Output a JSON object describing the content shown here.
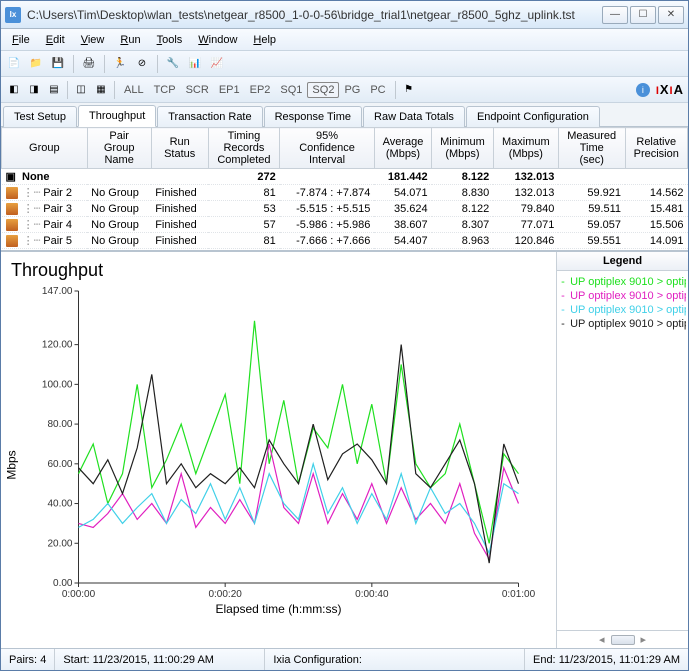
{
  "window": {
    "title": "C:\\Users\\Tim\\Desktop\\wlan_tests\\netgear_r8500_1-0-0-56\\bridge_trial1\\netgear_r8500_5ghz_uplink.tst"
  },
  "menu": [
    "File",
    "Edit",
    "View",
    "Run",
    "Tools",
    "Window",
    "Help"
  ],
  "toolbar2": {
    "buttons": [
      "ALL",
      "TCP",
      "SCR",
      "EP1",
      "EP2",
      "SQ1",
      "SQ2",
      "PG",
      "PC"
    ],
    "selected": "SQ2",
    "brand": "IXIA"
  },
  "tabs": {
    "items": [
      "Test Setup",
      "Throughput",
      "Transaction Rate",
      "Response Time",
      "Raw Data Totals",
      "Endpoint Configuration"
    ],
    "active": 1
  },
  "grid": {
    "columns": [
      "Group",
      "Pair Group Name",
      "Run Status",
      "Timing Records Completed",
      "95% Confidence Interval",
      "Average (Mbps)",
      "Minimum (Mbps)",
      "Maximum (Mbps)",
      "Measured Time (sec)",
      "Relative Precision"
    ],
    "summary": {
      "label": "None",
      "completed": "272",
      "avg": "181.442",
      "min": "8.122",
      "max": "132.013"
    },
    "rows": [
      {
        "pair": "Pair 2",
        "group": "No Group",
        "status": "Finished",
        "completed": "81",
        "ci": "-7.874 : +7.874",
        "avg": "54.071",
        "min": "8.830",
        "max": "132.013",
        "time": "59.921",
        "prec": "14.562"
      },
      {
        "pair": "Pair 3",
        "group": "No Group",
        "status": "Finished",
        "completed": "53",
        "ci": "-5.515 : +5.515",
        "avg": "35.624",
        "min": "8.122",
        "max": "79.840",
        "time": "59.511",
        "prec": "15.481"
      },
      {
        "pair": "Pair 4",
        "group": "No Group",
        "status": "Finished",
        "completed": "57",
        "ci": "-5.986 : +5.986",
        "avg": "38.607",
        "min": "8.307",
        "max": "77.071",
        "time": "59.057",
        "prec": "15.506"
      },
      {
        "pair": "Pair 5",
        "group": "No Group",
        "status": "Finished",
        "completed": "81",
        "ci": "-7.666 : +7.666",
        "avg": "54.407",
        "min": "8.963",
        "max": "120.846",
        "time": "59.551",
        "prec": "14.091"
      }
    ]
  },
  "chart": {
    "title": "Throughput",
    "ylabel": "Mbps",
    "xlabel": "Elapsed time (h:mm:ss)",
    "ylim": [
      0,
      147
    ],
    "yticks": [
      0,
      20,
      40,
      60,
      80,
      100,
      120,
      147
    ],
    "yticklabels": [
      "0.00",
      "20.00",
      "40.00",
      "60.00",
      "80.00",
      "100.00",
      "120.00",
      "147.00"
    ],
    "xticks": [
      0,
      20,
      40,
      60
    ],
    "xticklabels": [
      "0:00:00",
      "0:00:20",
      "0:00:40",
      "0:01:00"
    ],
    "background": "#ffffff",
    "axis_color": "#333333",
    "series": [
      {
        "name": "UP optiplex 9010 > optip",
        "color": "#20e020",
        "x": [
          0,
          2,
          4,
          6,
          8,
          10,
          12,
          14,
          16,
          18,
          20,
          22,
          24,
          26,
          28,
          30,
          32,
          34,
          36,
          38,
          40,
          42,
          44,
          46,
          48,
          50,
          52,
          54,
          56,
          58,
          60
        ],
        "y": [
          55,
          70,
          40,
          55,
          100,
          48,
          62,
          80,
          55,
          75,
          95,
          50,
          132,
          60,
          92,
          50,
          78,
          68,
          100,
          60,
          90,
          50,
          110,
          60,
          48,
          55,
          80,
          50,
          20,
          65,
          55
        ]
      },
      {
        "name": "UP optiplex 9010 > optip",
        "color": "#e020c0",
        "x": [
          0,
          2,
          4,
          6,
          8,
          10,
          12,
          14,
          16,
          18,
          20,
          22,
          24,
          26,
          28,
          30,
          32,
          34,
          36,
          38,
          40,
          42,
          44,
          46,
          48,
          50,
          52,
          54,
          56,
          58,
          60
        ],
        "y": [
          30,
          28,
          35,
          45,
          32,
          40,
          30,
          55,
          28,
          38,
          30,
          42,
          30,
          70,
          38,
          30,
          55,
          30,
          45,
          32,
          50,
          30,
          48,
          32,
          40,
          30,
          50,
          25,
          12,
          58,
          40
        ]
      },
      {
        "name": "UP optiplex 9010 > optip",
        "color": "#40d0e8",
        "x": [
          0,
          2,
          4,
          6,
          8,
          10,
          12,
          14,
          16,
          18,
          20,
          22,
          24,
          26,
          28,
          30,
          32,
          34,
          36,
          38,
          40,
          42,
          44,
          46,
          48,
          50,
          52,
          54,
          56,
          58,
          60
        ],
        "y": [
          28,
          32,
          40,
          30,
          38,
          45,
          30,
          42,
          35,
          50,
          32,
          48,
          30,
          55,
          40,
          32,
          60,
          35,
          48,
          30,
          45,
          32,
          55,
          30,
          48,
          35,
          40,
          30,
          15,
          50,
          45
        ]
      },
      {
        "name": "UP optiplex 9010 > optip",
        "color": "#202020",
        "x": [
          0,
          2,
          4,
          6,
          8,
          10,
          12,
          14,
          16,
          18,
          20,
          22,
          24,
          26,
          28,
          30,
          32,
          34,
          36,
          38,
          40,
          42,
          44,
          46,
          48,
          50,
          52,
          54,
          56,
          58,
          60
        ],
        "y": [
          58,
          50,
          62,
          45,
          68,
          105,
          50,
          60,
          48,
          55,
          50,
          58,
          48,
          72,
          60,
          50,
          80,
          52,
          65,
          70,
          62,
          50,
          120,
          55,
          48,
          60,
          72,
          50,
          10,
          70,
          50
        ]
      }
    ],
    "legend_title": "Legend"
  },
  "status": {
    "pairs_label": "Pairs:",
    "pairs": "4",
    "start_label": "Start:",
    "start": "11/23/2015, 11:00:29 AM",
    "config_label": "Ixia Configuration:",
    "end_label": "End:",
    "end": "11/23/2015, 11:01:29 AM"
  }
}
